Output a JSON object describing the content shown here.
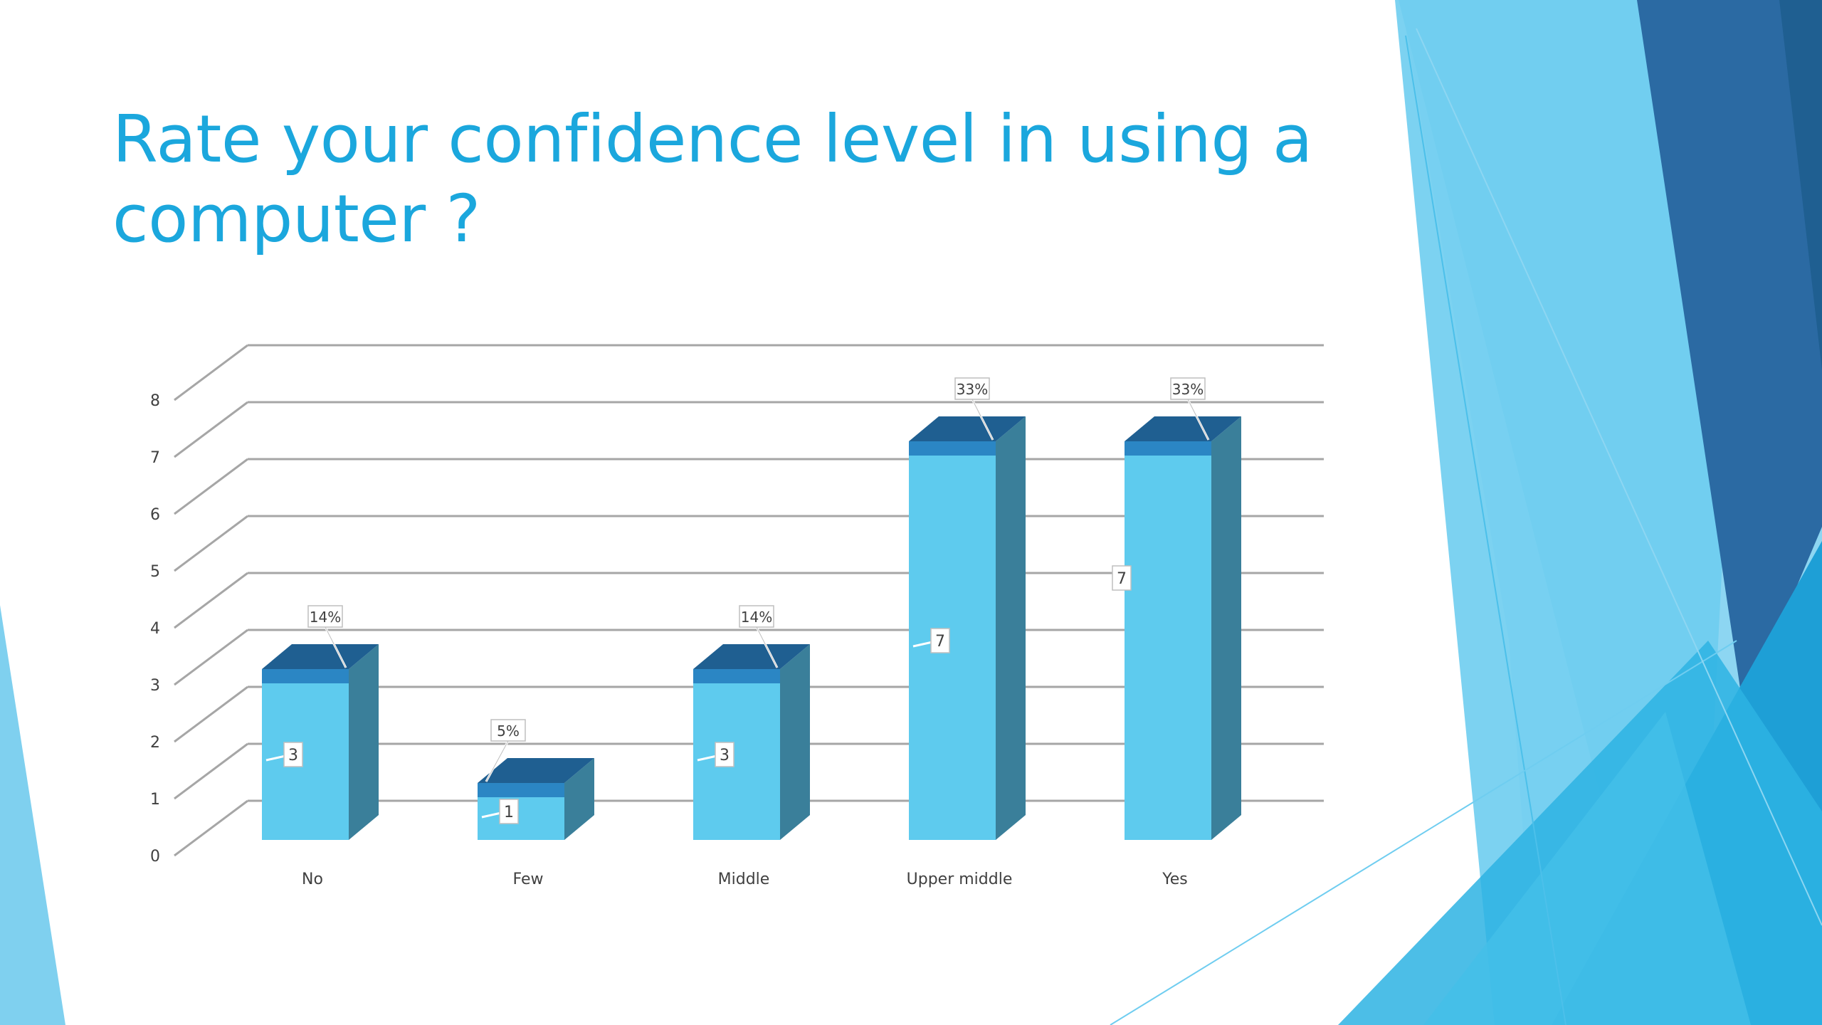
{
  "slide": {
    "title": "Rate your confidence level in using a computer ?"
  },
  "colors": {
    "title": "#1ba7dd",
    "bar_front": "#5ecbee",
    "bar_side": "#3a7f9a",
    "bar_top": "#1f5f91",
    "bar_top_band": "#2b86c4",
    "grid": "#a6a6a6",
    "deco_dark": "#2a6aa0",
    "deco_mid": "#2ab0e0",
    "deco_light": "#7fd0ef"
  },
  "chart_data": {
    "type": "bar",
    "style": "3d-column",
    "title": "",
    "xlabel": "",
    "ylabel": "",
    "categories": [
      "No",
      "Few",
      "Middle",
      "Upper middle",
      "Yes"
    ],
    "values": [
      3,
      1,
      3,
      7,
      7
    ],
    "value_labels": [
      "3",
      "1",
      "3",
      "7",
      "7"
    ],
    "percent_labels": [
      "14%",
      "5%",
      "14%",
      "33%",
      "33%"
    ],
    "y_ticks": [
      "0",
      "1",
      "2",
      "3",
      "4",
      "5",
      "6",
      "7",
      "8"
    ],
    "ylim": [
      0,
      8
    ],
    "grid": true,
    "legend": "none"
  }
}
